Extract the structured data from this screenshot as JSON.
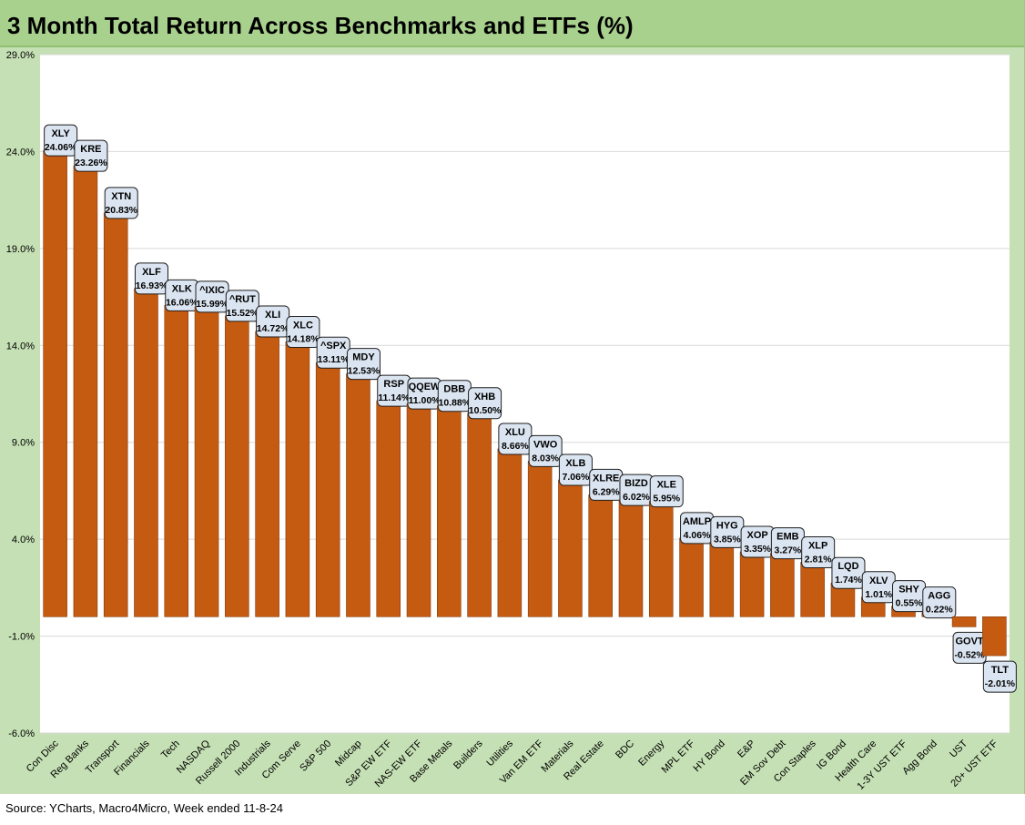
{
  "chart_data": {
    "type": "bar",
    "title": "3 Month Total Return Across Benchmarks and ETFs (%)",
    "source": "Source: YCharts, Macro4Micro, Week ended 11-8-24",
    "ylim": [
      -6,
      29
    ],
    "yticks": [
      "29.0%",
      "24.0%",
      "19.0%",
      "14.0%",
      "9.0%",
      "4.0%",
      "-1.0%",
      "-6.0%"
    ],
    "ytick_values": [
      29,
      24,
      19,
      14,
      9,
      4,
      -1,
      -6
    ],
    "grid": true,
    "bar_color": "#c55a11",
    "plot_bg": "#ffffff",
    "frame_bg": "#c5e0b4",
    "label_bg": "#dbe5f1",
    "categories": [
      "Con Disc",
      "Reg Banks",
      "Transport",
      "Financials",
      "Tech",
      "NASDAQ",
      "Russell 2000",
      "Industrials",
      "Com Serve",
      "S&P 500",
      "Midcap",
      "S&P EW ETF",
      "NAS-EW ETF",
      "Base Metals",
      "Builders",
      "Utilities",
      "Van EM ETF",
      "Materials",
      "Real Estate",
      "BDC",
      "Energy",
      "MPL ETF",
      "HY Bond",
      "E&P",
      "EM Sov Debt",
      "Con Staples",
      "IG Bond",
      "Health Care",
      "1-3Y UST ETF",
      "Agg Bond",
      "UST",
      "20+ UST ETF"
    ],
    "tickers": [
      "XLY",
      "KRE",
      "XTN",
      "XLF",
      "XLK",
      "^IXIC",
      "^RUT",
      "XLI",
      "XLC",
      "^SPX",
      "MDY",
      "RSP",
      "QQEW",
      "DBB",
      "XHB",
      "XLU",
      "VWO",
      "XLB",
      "XLRE",
      "BIZD",
      "XLE",
      "AMLP",
      "HYG",
      "XOP",
      "EMB",
      "XLP",
      "LQD",
      "XLV",
      "SHY",
      "AGG",
      "GOVT",
      "TLT"
    ],
    "values": [
      24.06,
      23.26,
      20.83,
      16.93,
      16.06,
      15.99,
      15.52,
      14.72,
      14.18,
      13.11,
      12.53,
      11.14,
      11.0,
      10.88,
      10.5,
      8.66,
      8.03,
      7.06,
      6.29,
      6.02,
      5.95,
      4.06,
      3.85,
      3.35,
      3.27,
      2.81,
      1.74,
      1.01,
      0.55,
      0.22,
      -0.52,
      -2.01
    ],
    "value_labels": [
      "24.06%",
      "23.26%",
      "20.83%",
      "16.93%",
      "16.06%",
      "15.99%",
      "15.52%",
      "14.72%",
      "14.18%",
      "13.11%",
      "12.53%",
      "11.14%",
      "11.00%",
      "10.88%",
      "10.50%",
      "8.66%",
      "8.03%",
      "7.06%",
      "6.29%",
      "6.02%",
      "5.95%",
      "4.06%",
      "3.85%",
      "3.35%",
      "3.27%",
      "2.81%",
      "1.74%",
      "1.01%",
      "0.55%",
      "0.22%",
      "-0.52%",
      "-2.01%"
    ]
  }
}
